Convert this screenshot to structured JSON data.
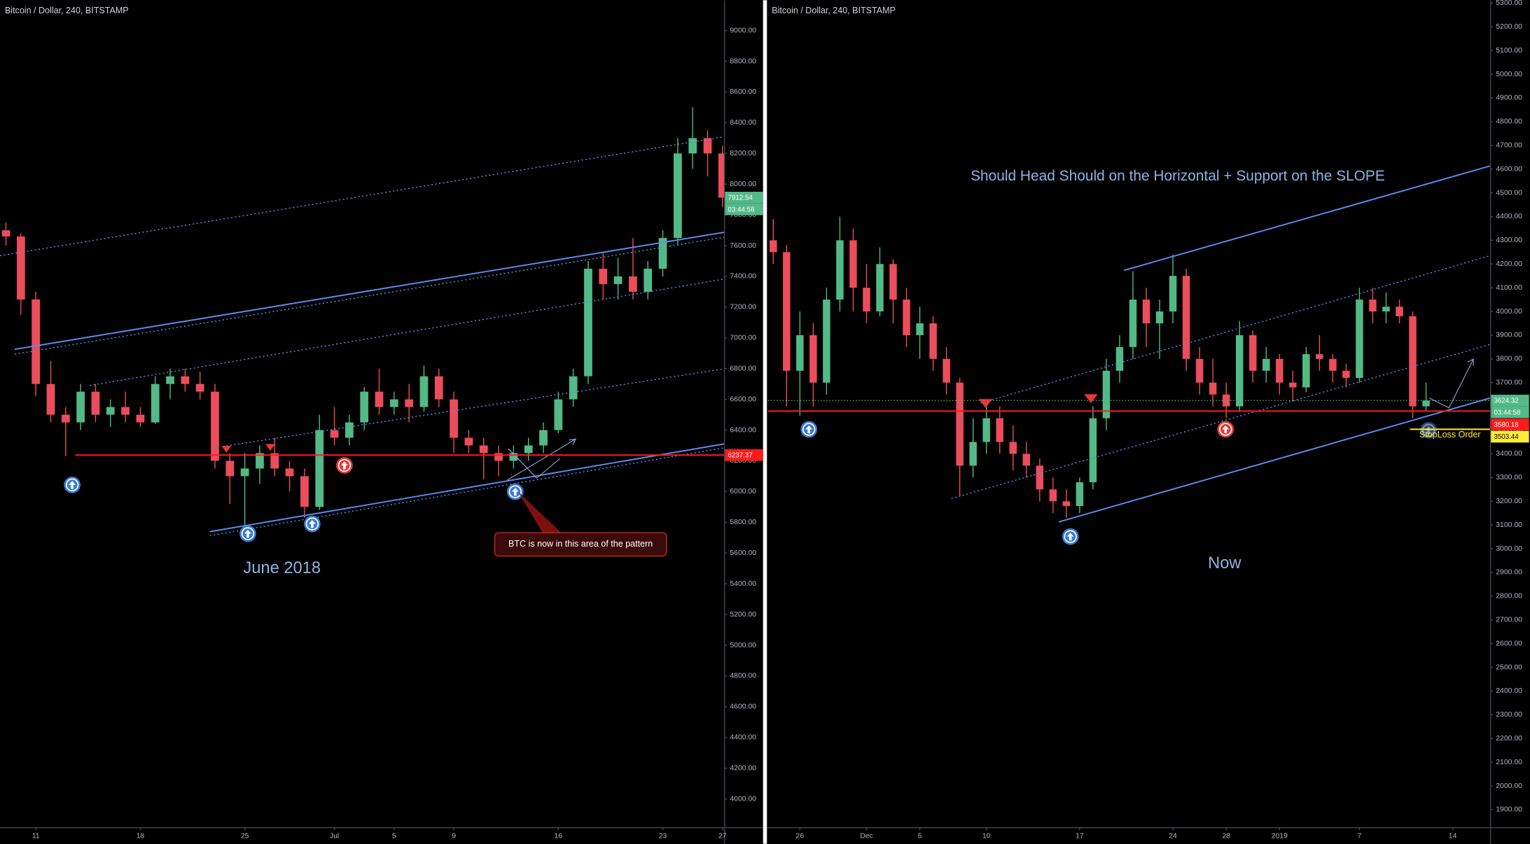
{
  "chart_data": [
    {
      "type": "candlestick",
      "title": "Bitcoin / Dollar, 240, BITSTAMP",
      "countdown": "03:44:58",
      "annotations": [
        "June 2018",
        "BTC is now in this area of the pattern"
      ],
      "up_color": "#53b987",
      "down_color": "#eb4d5c",
      "x": [
        -2,
        -1,
        0,
        1,
        2,
        3,
        4,
        5,
        6,
        7,
        8,
        9,
        10,
        11,
        12,
        13,
        14,
        15,
        16,
        17,
        18,
        19,
        20,
        21,
        22,
        23,
        24,
        25,
        26,
        27,
        28,
        29,
        30,
        31,
        32,
        33,
        34,
        35,
        36,
        37,
        38,
        39,
        40,
        41,
        42,
        43,
        44,
        45,
        46
      ],
      "open": [
        7700,
        7660,
        7250,
        6700,
        6500,
        6450,
        6650,
        6500,
        6550,
        6500,
        6450,
        6700,
        6750,
        6700,
        6650,
        6200,
        6100,
        6150,
        6250,
        6150,
        6100,
        5900,
        6400,
        6350,
        6450,
        6650,
        6550,
        6600,
        6550,
        6750,
        6600,
        6350,
        6300,
        6250,
        6200,
        6250,
        6300,
        6400,
        6600,
        6750,
        7450,
        7350,
        7400,
        7300,
        7450,
        7650,
        8200,
        8300,
        8200
      ],
      "high": [
        7750,
        7680,
        7300,
        6850,
        6550,
        6700,
        6700,
        6600,
        6650,
        6550,
        6750,
        6800,
        6800,
        6780,
        6700,
        6250,
        6250,
        6300,
        6350,
        6200,
        6150,
        6500,
        6550,
        6500,
        6680,
        6800,
        6650,
        6700,
        6820,
        6800,
        6650,
        6400,
        6350,
        6300,
        6300,
        6350,
        6450,
        6650,
        6800,
        7500,
        7550,
        7520,
        7650,
        7500,
        7700,
        8300,
        8500,
        8350,
        8250
      ],
      "low": [
        7600,
        7150,
        6620,
        6450,
        6230,
        6400,
        6450,
        6420,
        6450,
        6420,
        6440,
        6600,
        6650,
        6600,
        6150,
        5920,
        5780,
        6050,
        6100,
        6000,
        5830,
        5880,
        6300,
        6300,
        6400,
        6500,
        6500,
        6450,
        6520,
        6550,
        6250,
        6250,
        6080,
        6100,
        6150,
        6200,
        6250,
        6380,
        6550,
        6700,
        7250,
        7250,
        7250,
        7250,
        7400,
        7600,
        8100,
        8050,
        7850
      ],
      "close": [
        7660,
        7250,
        6700,
        6500,
        6450,
        6650,
        6500,
        6550,
        6500,
        6450,
        6700,
        6750,
        6700,
        6650,
        6200,
        6100,
        6150,
        6250,
        6150,
        6100,
        5900,
        6400,
        6350,
        6450,
        6650,
        6550,
        6600,
        6550,
        6750,
        6600,
        6350,
        6300,
        6250,
        6200,
        6250,
        6300,
        6400,
        6600,
        6750,
        7450,
        7350,
        7400,
        7300,
        7450,
        7650,
        8200,
        8300,
        8200,
        7912.54
      ],
      "xlim": [
        -2.4,
        46.1
      ],
      "xticks": [
        {
          "value": 0,
          "label": "11"
        },
        {
          "value": 7,
          "label": "18"
        },
        {
          "value": 14,
          "label": "25"
        },
        {
          "value": 20,
          "label": "Jul"
        },
        {
          "value": 24,
          "label": "5"
        },
        {
          "value": 28,
          "label": "9"
        },
        {
          "value": 35,
          "label": "16"
        },
        {
          "value": 42,
          "label": "23"
        },
        {
          "value": 46,
          "label": "27"
        }
      ],
      "ylim": [
        3816,
        9197
      ],
      "yticks": [
        {
          "value": 4000,
          "label": "4000.00"
        },
        {
          "value": 4200,
          "label": "4200.00"
        },
        {
          "value": 4400,
          "label": "4400.00"
        },
        {
          "value": 4600,
          "label": "4600.00"
        },
        {
          "value": 4800,
          "label": "4800.00"
        },
        {
          "value": 5000,
          "label": "5000.00"
        },
        {
          "value": 5200,
          "label": "5200.00"
        },
        {
          "value": 5400,
          "label": "5400.00"
        },
        {
          "value": 5600,
          "label": "5600.00"
        },
        {
          "value": 5800,
          "label": "5800.00"
        },
        {
          "value": 6000,
          "label": "6000.00"
        },
        {
          "value": 6200,
          "label": "6200.00"
        },
        {
          "value": 6400,
          "label": "6400.00"
        },
        {
          "value": 6600,
          "label": "6600.00"
        },
        {
          "value": 6800,
          "label": "6800.00"
        },
        {
          "value": 7000,
          "label": "7000.00"
        },
        {
          "value": 7200,
          "label": "7200.00"
        },
        {
          "value": 7400,
          "label": "7400.00"
        },
        {
          "value": 7600,
          "label": "7600.00"
        },
        {
          "value": 7800,
          "label": "7800.00"
        },
        {
          "value": 8000,
          "label": "8000.00"
        },
        {
          "value": 8200,
          "label": "8200.00"
        },
        {
          "value": 8400,
          "label": "8400.00"
        },
        {
          "value": 8600,
          "label": "8600.00"
        },
        {
          "value": 8800,
          "label": "8800.00"
        },
        {
          "value": 9000,
          "label": "9000.00"
        }
      ],
      "price_lines": [
        {
          "value": 6237.37,
          "color": "#ff1a1a"
        }
      ]
    },
    {
      "type": "candlestick",
      "title": "Bitcoin / Dollar, 240, BITSTAMP",
      "countdown": "03:44:58",
      "annotations": [
        "Should Head Should on the Horizontal + Support on the SLOPE",
        "Now",
        "StopLoss Order"
      ],
      "up_color": "#53b987",
      "down_color": "#eb4d5c",
      "x": [
        -2,
        -1,
        0,
        1,
        2,
        3,
        4,
        5,
        6,
        7,
        8,
        9,
        10,
        11,
        12,
        13,
        14,
        15,
        16,
        17,
        18,
        19,
        20,
        21,
        22,
        23,
        24,
        25,
        26,
        27,
        28,
        29,
        30,
        31,
        32,
        33,
        34,
        35,
        36,
        37,
        38,
        39,
        40,
        41,
        42,
        43,
        44,
        45,
        46,
        47
      ],
      "open": [
        4300,
        4250,
        3750,
        3900,
        3700,
        4050,
        4300,
        4100,
        4000,
        4200,
        4050,
        3900,
        3950,
        3800,
        3700,
        3350,
        3450,
        3550,
        3450,
        3400,
        3350,
        3250,
        3200,
        3180,
        3280,
        3550,
        3750,
        3850,
        4050,
        3950,
        4000,
        4150,
        3800,
        3700,
        3650,
        3600,
        3900,
        3750,
        3800,
        3700,
        3680,
        3820,
        3800,
        3750,
        3720,
        4050,
        4000,
        4020,
        3980,
        3600
      ],
      "high": [
        4390,
        4280,
        4000,
        3950,
        4100,
        4400,
        4350,
        4200,
        4270,
        4220,
        4100,
        4020,
        3980,
        3850,
        3720,
        3550,
        3620,
        3600,
        3520,
        3450,
        3380,
        3300,
        3250,
        3300,
        3600,
        3800,
        3900,
        4170,
        4100,
        4050,
        4240,
        4180,
        3850,
        3800,
        3700,
        3960,
        3920,
        3850,
        3820,
        3750,
        3850,
        3900,
        3820,
        3780,
        4100,
        4100,
        4080,
        4050,
        4000,
        3700
      ],
      "low": [
        4200,
        3600,
        3560,
        3600,
        3650,
        4000,
        4000,
        3950,
        3980,
        3950,
        3850,
        3800,
        3750,
        3650,
        3220,
        3300,
        3400,
        3400,
        3330,
        3300,
        3200,
        3150,
        3130,
        3150,
        3250,
        3500,
        3700,
        3800,
        3850,
        3800,
        3950,
        3750,
        3650,
        3600,
        3550,
        3580,
        3700,
        3700,
        3650,
        3620,
        3660,
        3750,
        3700,
        3680,
        3700,
        3950,
        3950,
        3950,
        3550,
        3580
      ],
      "close": [
        4250,
        3750,
        3900,
        3700,
        4050,
        4300,
        4100,
        4000,
        4200,
        4050,
        3900,
        3950,
        3800,
        3700,
        3350,
        3450,
        3550,
        3450,
        3400,
        3350,
        3250,
        3200,
        3180,
        3280,
        3550,
        3750,
        3850,
        4050,
        3950,
        4000,
        4150,
        3800,
        3700,
        3650,
        3600,
        3900,
        3750,
        3800,
        3700,
        3680,
        3820,
        3800,
        3750,
        3720,
        4050,
        4000,
        4020,
        3980,
        3600,
        3624.32
      ],
      "xlim": [
        -2.4,
        51.8
      ],
      "xticks": [
        {
          "value": 0,
          "label": "26"
        },
        {
          "value": 5,
          "label": "Dec"
        },
        {
          "value": 9,
          "label": "5"
        },
        {
          "value": 14,
          "label": "10"
        },
        {
          "value": 21,
          "label": "17"
        },
        {
          "value": 28,
          "label": "24"
        },
        {
          "value": 32,
          "label": "28"
        },
        {
          "value": 36,
          "label": "2019"
        },
        {
          "value": 42,
          "label": "7"
        },
        {
          "value": 49,
          "label": "14"
        }
      ],
      "ylim": [
        1826,
        5312
      ],
      "yticks": [
        {
          "value": 1900,
          "label": "1900.00"
        },
        {
          "value": 2000,
          "label": "2000.00"
        },
        {
          "value": 2100,
          "label": "2100.00"
        },
        {
          "value": 2200,
          "label": "2200.00"
        },
        {
          "value": 2300,
          "label": "2300.00"
        },
        {
          "value": 2400,
          "label": "2400.00"
        },
        {
          "value": 2500,
          "label": "2500.00"
        },
        {
          "value": 2600,
          "label": "2600.00"
        },
        {
          "value": 2700,
          "label": "2700.00"
        },
        {
          "value": 2800,
          "label": "2800.00"
        },
        {
          "value": 2900,
          "label": "2900.00"
        },
        {
          "value": 3000,
          "label": "3000.00"
        },
        {
          "value": 3100,
          "label": "3100.00"
        },
        {
          "value": 3200,
          "label": "3200.00"
        },
        {
          "value": 3300,
          "label": "3300.00"
        },
        {
          "value": 3400,
          "label": "3400.00"
        },
        {
          "value": 3500,
          "label": "3500.00"
        },
        {
          "value": 3600,
          "label": "3600.00"
        },
        {
          "value": 3700,
          "label": "3700.00"
        },
        {
          "value": 3800,
          "label": "3800.00"
        },
        {
          "value": 3900,
          "label": "3900.00"
        },
        {
          "value": 4000,
          "label": "4000.00"
        },
        {
          "value": 4100,
          "label": "4100.00"
        },
        {
          "value": 4200,
          "label": "4200.00"
        },
        {
          "value": 4300,
          "label": "4300.00"
        },
        {
          "value": 4400,
          "label": "4400.00"
        },
        {
          "value": 4500,
          "label": "4500.00"
        },
        {
          "value": 4600,
          "label": "4600.00"
        },
        {
          "value": 4700,
          "label": "4700.00"
        },
        {
          "value": 4800,
          "label": "4800.00"
        },
        {
          "value": 4900,
          "label": "4900.00"
        },
        {
          "value": 5000,
          "label": "5000.00"
        },
        {
          "value": 5100,
          "label": "5100.00"
        },
        {
          "value": 5200,
          "label": "5200.00"
        },
        {
          "value": 5300,
          "label": "5300.00"
        }
      ],
      "price_lines": [
        {
          "value": 3580.18,
          "color": "#ff1a1a"
        },
        {
          "value": 3503.44,
          "color": "#ffeb3b"
        }
      ]
    }
  ]
}
